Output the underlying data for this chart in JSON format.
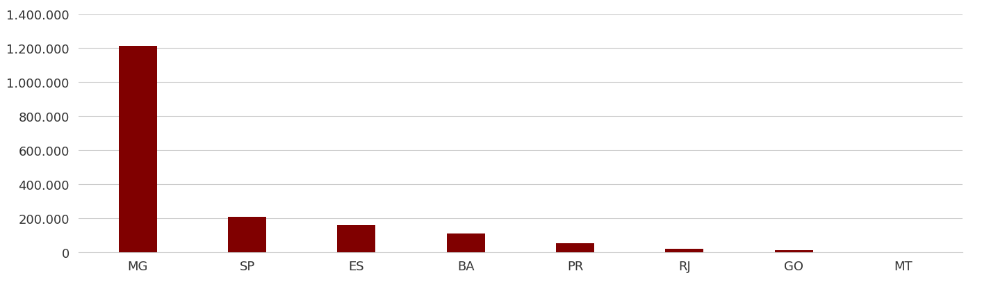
{
  "categories": [
    "MG",
    "SP",
    "ES",
    "BA",
    "PR",
    "RJ",
    "GO",
    "MT"
  ],
  "values": [
    1210000,
    210000,
    160000,
    110000,
    55000,
    20000,
    12000,
    2000
  ],
  "bar_color": "#800000",
  "background_color": "#ffffff",
  "ylim": [
    0,
    1400000
  ],
  "yticks": [
    0,
    200000,
    400000,
    600000,
    800000,
    1000000,
    1200000,
    1400000
  ],
  "grid_color": "#cccccc",
  "tick_label_color": "#333333",
  "ytick_fontsize": 13,
  "xtick_fontsize": 13,
  "bar_width": 0.35
}
